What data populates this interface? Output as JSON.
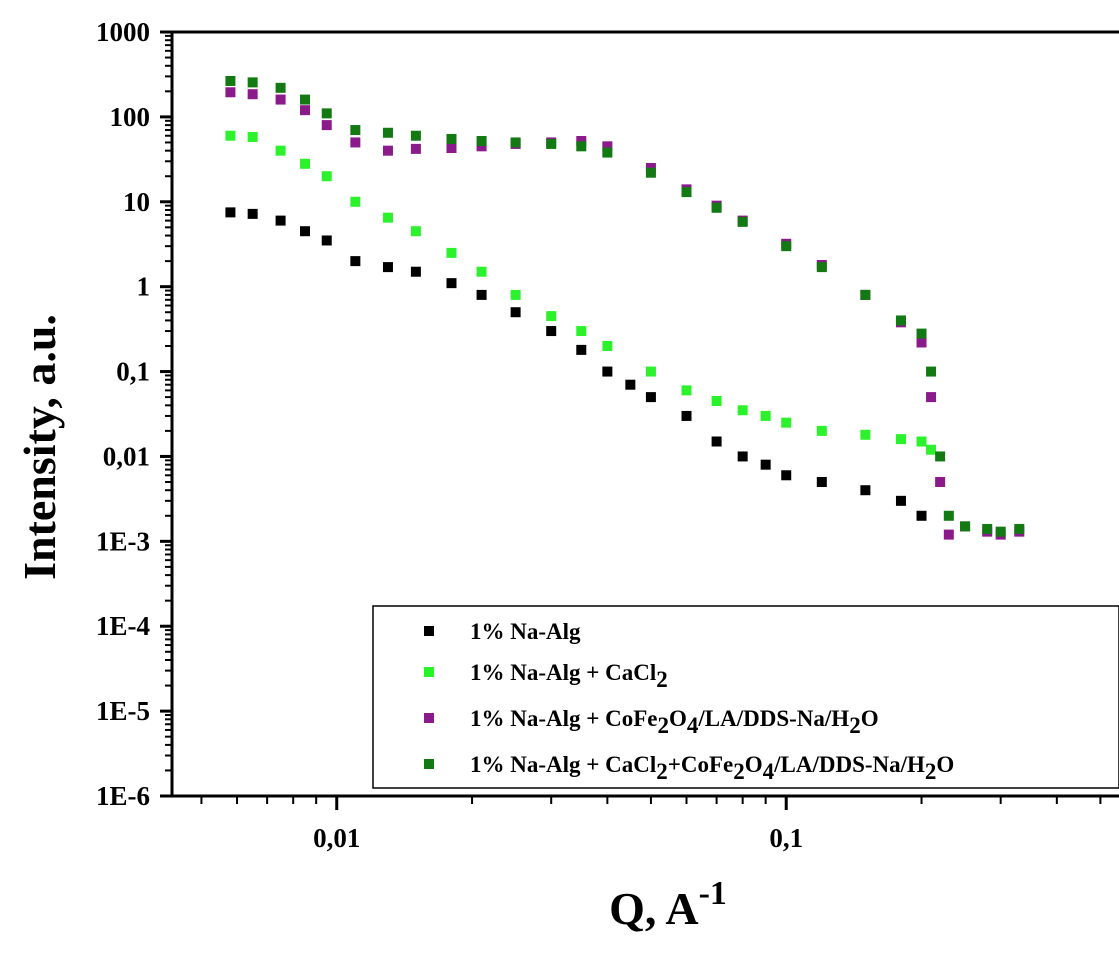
{
  "chart_data": {
    "type": "scatter",
    "xlabel": "Q, A",
    "xlabel_sup": "-1",
    "ylabel": "Intensity, a.u.",
    "x_scale": "log",
    "y_scale": "log",
    "xlim": [
      0.0043,
      0.55
    ],
    "ylim": [
      1e-06,
      1000
    ],
    "x_ticks": [
      {
        "value": 0.01,
        "label": "0,01"
      },
      {
        "value": 0.1,
        "label": "0,1"
      }
    ],
    "y_ticks": [
      {
        "value": 1000,
        "label": "1000"
      },
      {
        "value": 100,
        "label": "100"
      },
      {
        "value": 10,
        "label": "10"
      },
      {
        "value": 1,
        "label": "1"
      },
      {
        "value": 0.1,
        "label": "0,1"
      },
      {
        "value": 0.01,
        "label": "0,01"
      },
      {
        "value": 0.001,
        "label": "1E-3"
      },
      {
        "value": 0.0001,
        "label": "1E-4"
      },
      {
        "value": 1e-05,
        "label": "1E-5"
      },
      {
        "value": 1e-06,
        "label": "1E-6"
      }
    ],
    "grid": false,
    "legend_position": "bottom-right",
    "series": [
      {
        "name": "1% Na-Alg",
        "color": "#000000",
        "x": [
          0.0058,
          0.0065,
          0.0075,
          0.0085,
          0.0095,
          0.011,
          0.013,
          0.015,
          0.018,
          0.021,
          0.025,
          0.03,
          0.035,
          0.04,
          0.045,
          0.05,
          0.06,
          0.07,
          0.08,
          0.09,
          0.1,
          0.12,
          0.15,
          0.18,
          0.2
        ],
        "y": [
          7.5,
          7.2,
          6.0,
          4.5,
          3.5,
          2.0,
          1.7,
          1.5,
          1.1,
          0.8,
          0.5,
          0.3,
          0.18,
          0.1,
          0.07,
          0.05,
          0.03,
          0.015,
          0.01,
          0.008,
          0.006,
          0.005,
          0.004,
          0.003,
          0.002
        ]
      },
      {
        "name": "1% Na-Alg + CaCl",
        "name_sub": "2",
        "color": "#2cf22c",
        "x": [
          0.0058,
          0.0065,
          0.0075,
          0.0085,
          0.0095,
          0.011,
          0.013,
          0.015,
          0.018,
          0.021,
          0.025,
          0.03,
          0.035,
          0.04,
          0.05,
          0.06,
          0.07,
          0.08,
          0.09,
          0.1,
          0.12,
          0.15,
          0.18,
          0.2,
          0.21
        ],
        "y": [
          60,
          58,
          40,
          28,
          20,
          10,
          6.5,
          4.5,
          2.5,
          1.5,
          0.8,
          0.45,
          0.3,
          0.2,
          0.1,
          0.06,
          0.045,
          0.035,
          0.03,
          0.025,
          0.02,
          0.018,
          0.016,
          0.015,
          0.012
        ]
      },
      {
        "name": "1% Na-Alg + CoFe",
        "name_parts": [
          "1% Na-Alg + CoFe",
          "2",
          "O",
          "4",
          "/LA/DDS-Na/H",
          "2",
          "O"
        ],
        "color": "#8b1a8b",
        "x": [
          0.0058,
          0.0065,
          0.0075,
          0.0085,
          0.0095,
          0.011,
          0.013,
          0.015,
          0.018,
          0.021,
          0.025,
          0.03,
          0.035,
          0.04,
          0.05,
          0.06,
          0.07,
          0.08,
          0.1,
          0.12,
          0.15,
          0.18,
          0.2,
          0.21,
          0.22,
          0.23,
          0.25,
          0.28,
          0.3,
          0.33
        ],
        "y": [
          195,
          185,
          160,
          120,
          80,
          50,
          40,
          42,
          43,
          45,
          48,
          50,
          52,
          45,
          25,
          14,
          9,
          6,
          3.2,
          1.8,
          0.8,
          0.38,
          0.22,
          0.05,
          0.005,
          0.0012,
          0.0015,
          0.0013,
          0.0012,
          0.0013
        ]
      },
      {
        "name": "1% Na-Alg + CaCl",
        "name_parts": [
          "1% Na-Alg + CaCl",
          "2",
          "+CoFe",
          "2",
          "O",
          "4",
          "/LA/DDS-Na/H",
          "2",
          "O"
        ],
        "color": "#137a13",
        "x": [
          0.0058,
          0.0065,
          0.0075,
          0.0085,
          0.0095,
          0.011,
          0.013,
          0.015,
          0.018,
          0.021,
          0.025,
          0.03,
          0.035,
          0.04,
          0.05,
          0.06,
          0.07,
          0.08,
          0.1,
          0.12,
          0.15,
          0.18,
          0.2,
          0.21,
          0.22,
          0.23,
          0.25,
          0.28,
          0.3,
          0.33
        ],
        "y": [
          265,
          255,
          220,
          160,
          110,
          70,
          65,
          60,
          55,
          52,
          50,
          48,
          45,
          38,
          22,
          13,
          8.5,
          5.8,
          3.0,
          1.7,
          0.8,
          0.4,
          0.28,
          0.1,
          0.01,
          0.002,
          0.0015,
          0.0014,
          0.0013,
          0.0014
        ]
      }
    ],
    "legend": [
      {
        "parts": [
          {
            "t": "1% Na-Alg"
          }
        ]
      },
      {
        "parts": [
          {
            "t": "1% Na-Alg + CaCl"
          },
          {
            "t": "2",
            "sub": true
          }
        ]
      },
      {
        "parts": [
          {
            "t": "1% Na-Alg + CoFe"
          },
          {
            "t": "2",
            "sub": true
          },
          {
            "t": "O"
          },
          {
            "t": "4",
            "sub": true
          },
          {
            "t": "/LA/DDS-Na/H"
          },
          {
            "t": "2",
            "sub": true
          },
          {
            "t": "O"
          }
        ]
      },
      {
        "parts": [
          {
            "t": "1% Na-Alg + CaCl"
          },
          {
            "t": "2",
            "sub": true
          },
          {
            "t": "+CoFe"
          },
          {
            "t": "2",
            "sub": true
          },
          {
            "t": "O"
          },
          {
            "t": "4",
            "sub": true
          },
          {
            "t": "/LA/DDS-Na/H"
          },
          {
            "t": "2",
            "sub": true
          },
          {
            "t": "O"
          }
        ]
      }
    ]
  }
}
